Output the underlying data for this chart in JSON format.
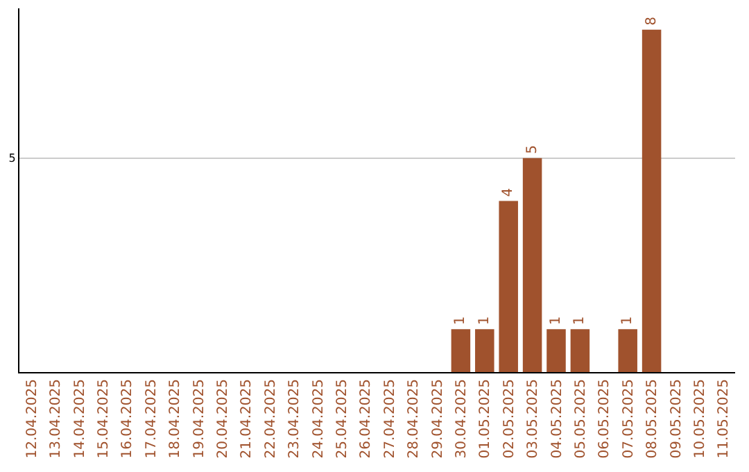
{
  "chart_data": {
    "type": "bar",
    "categories": [
      "12.04.2025",
      "13.04.2025",
      "14.04.2025",
      "15.04.2025",
      "16.04.2025",
      "17.04.2025",
      "18.04.2025",
      "19.04.2025",
      "20.04.2025",
      "21.04.2025",
      "22.04.2025",
      "23.04.2025",
      "24.04.2025",
      "25.04.2025",
      "26.04.2025",
      "27.04.2025",
      "28.04.2025",
      "29.04.2025",
      "30.04.2025",
      "01.05.2025",
      "02.05.2025",
      "03.05.2025",
      "04.05.2025",
      "05.05.2025",
      "06.05.2025",
      "07.05.2025",
      "08.05.2025",
      "09.05.2025",
      "10.05.2025",
      "11.05.2025"
    ],
    "values": [
      null,
      null,
      null,
      null,
      null,
      null,
      null,
      null,
      null,
      null,
      null,
      null,
      null,
      null,
      null,
      null,
      null,
      null,
      1,
      1,
      4,
      5,
      1,
      1,
      null,
      1,
      8,
      null,
      null,
      null
    ],
    "color": "#a0522d",
    "ylim": [
      0,
      8.5
    ],
    "yticks": [
      5
    ],
    "grid": "y",
    "data_labels": true
  }
}
